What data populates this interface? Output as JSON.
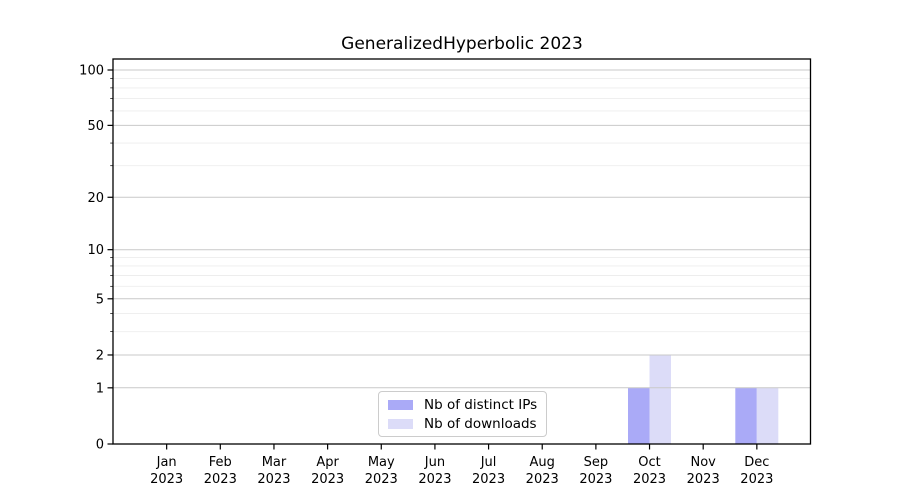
{
  "figure": {
    "background": "#ffffff"
  },
  "chart_data": {
    "type": "bar",
    "title": "GeneralizedHyperbolic 2023",
    "categories": [
      {
        "month": "Jan",
        "year": "2023"
      },
      {
        "month": "Feb",
        "year": "2023"
      },
      {
        "month": "Mar",
        "year": "2023"
      },
      {
        "month": "Apr",
        "year": "2023"
      },
      {
        "month": "May",
        "year": "2023"
      },
      {
        "month": "Jun",
        "year": "2023"
      },
      {
        "month": "Jul",
        "year": "2023"
      },
      {
        "month": "Aug",
        "year": "2023"
      },
      {
        "month": "Sep",
        "year": "2023"
      },
      {
        "month": "Oct",
        "year": "2023"
      },
      {
        "month": "Nov",
        "year": "2023"
      },
      {
        "month": "Dec",
        "year": "2023"
      }
    ],
    "series": [
      {
        "name": "Nb of distinct IPs",
        "color": "#aaaaf7",
        "values": [
          0,
          0,
          0,
          0,
          0,
          0,
          0,
          0,
          0,
          1,
          0,
          1
        ]
      },
      {
        "name": "Nb of downloads",
        "color": "#dcdcf8",
        "values": [
          0,
          0,
          0,
          0,
          0,
          0,
          0,
          0,
          0,
          2,
          0,
          1
        ]
      }
    ],
    "xlabel": "",
    "ylabel": "",
    "yscale": "log1p",
    "ylim": [
      0,
      115
    ],
    "yticks_major": [
      0,
      1,
      2,
      5,
      10,
      20,
      50,
      100
    ],
    "yticks_minor": [
      3,
      4,
      6,
      7,
      8,
      9,
      30,
      40,
      60,
      70,
      80,
      90
    ],
    "grid": "horizontal",
    "legend_position": "lower-center-left",
    "colors": {
      "major_grid": "#c9c9c9",
      "minor_grid": "#ededed",
      "axis": "#000000",
      "tick_text": "#000000"
    }
  }
}
